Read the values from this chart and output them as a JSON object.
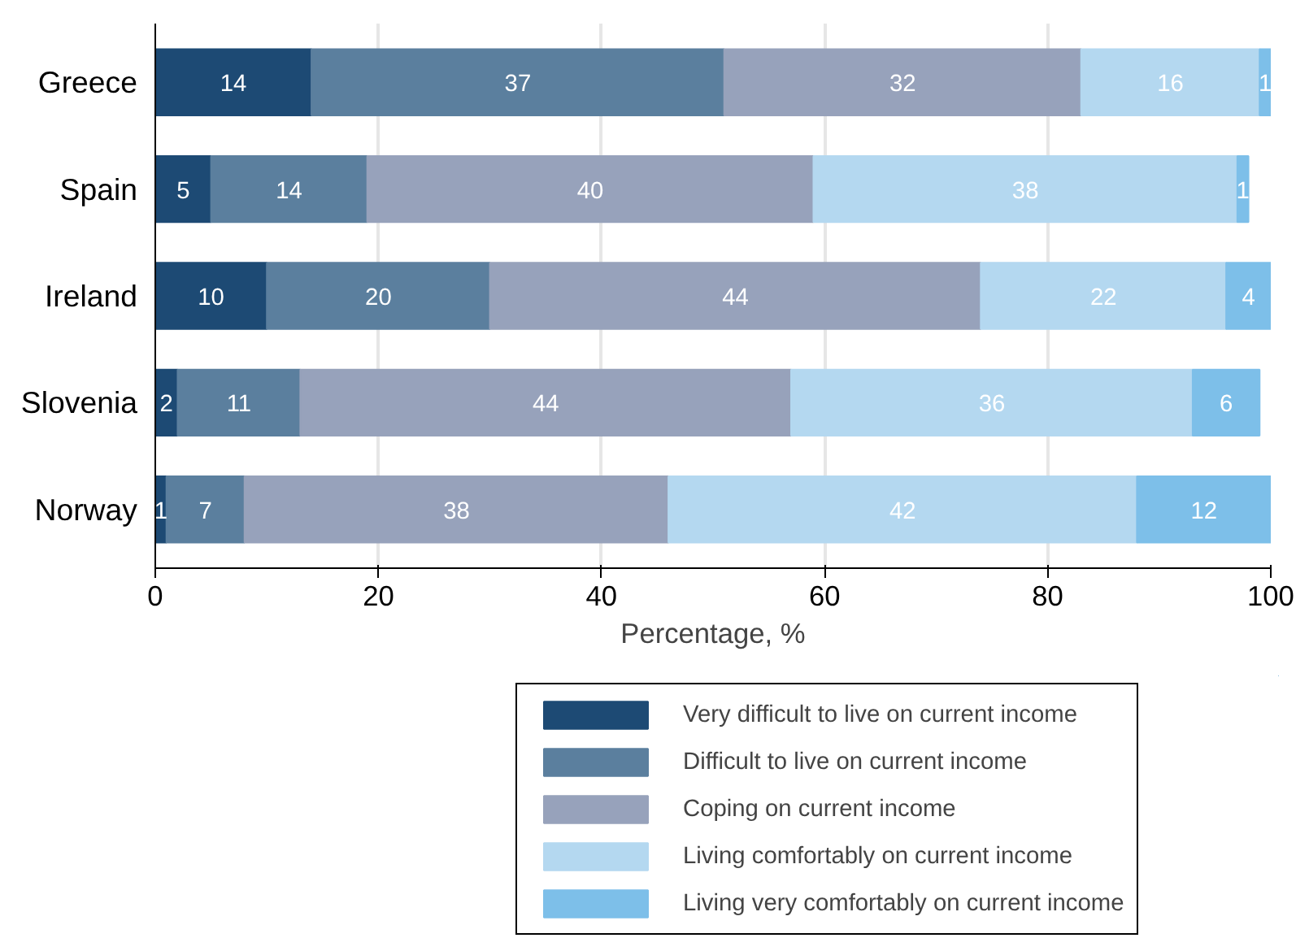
{
  "chart_data": {
    "type": "bar",
    "orientation": "horizontal",
    "stacked": true,
    "xlabel": "Percentage, %",
    "categories": [
      "Greece",
      "Spain",
      "Ireland",
      "Slovenia",
      "Norway"
    ],
    "series": [
      {
        "name": "Very difficult to live on current income",
        "color": "#1d4a74",
        "values": [
          14,
          5,
          10,
          2,
          1
        ]
      },
      {
        "name": "Difficult to live on current income",
        "color": "#5b7f9e",
        "values": [
          37,
          14,
          20,
          11,
          7
        ]
      },
      {
        "name": "Coping on current income",
        "color": "#97a2bb",
        "values": [
          32,
          40,
          44,
          44,
          38
        ]
      },
      {
        "name": "Living comfortably on current income",
        "color": "#b4d8f0",
        "values": [
          16,
          38,
          22,
          36,
          42
        ]
      },
      {
        "name": "Living very comfortably on current income",
        "color": "#7dbfe9",
        "values": [
          1,
          1,
          4,
          6,
          12
        ]
      }
    ],
    "xlim": [
      0,
      100
    ],
    "xticks": [
      0,
      20,
      40,
      60,
      80,
      100
    ],
    "grid": "x",
    "legend": "bottom",
    "data_labels": true
  }
}
